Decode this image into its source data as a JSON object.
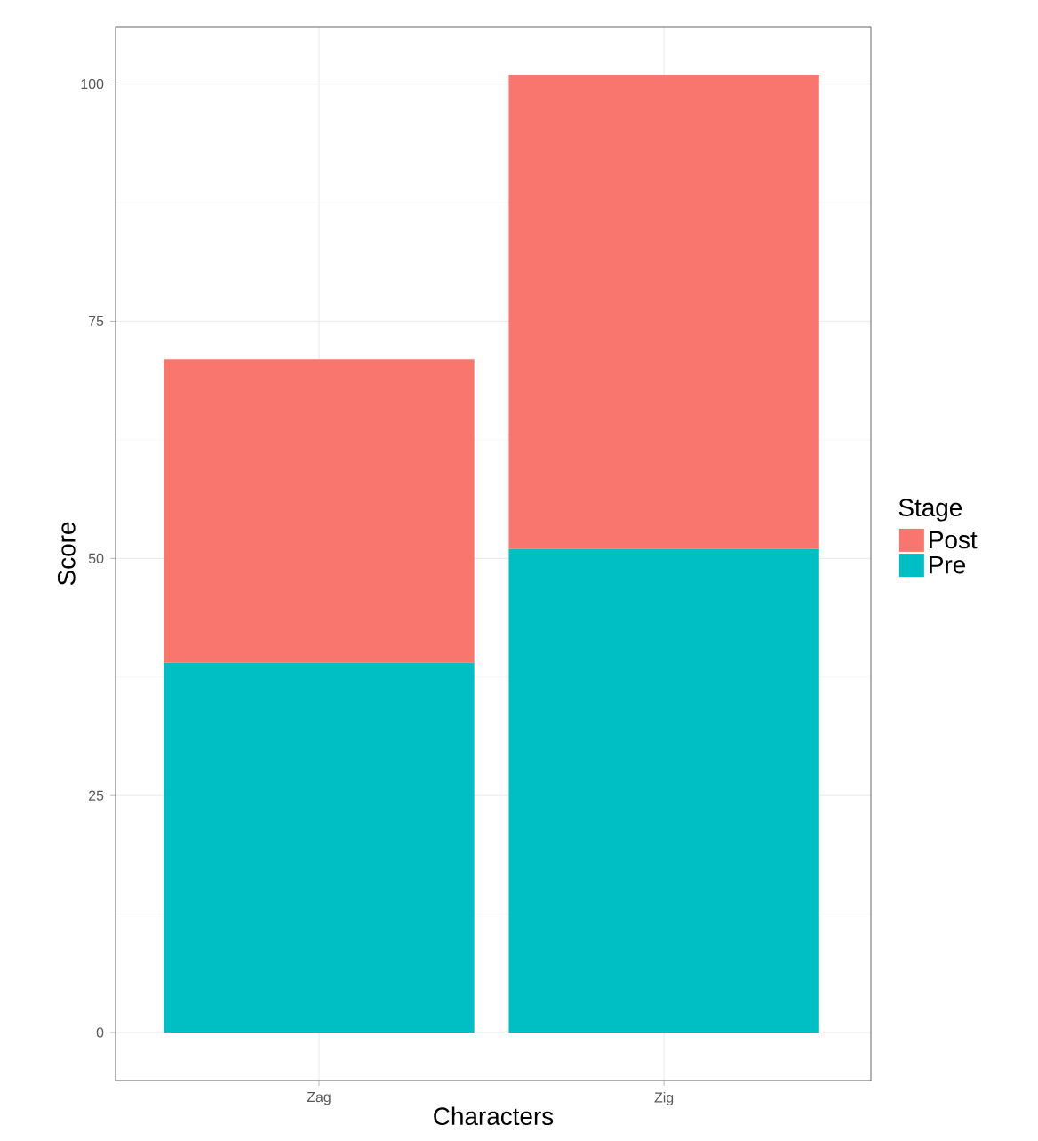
{
  "chart_data": {
    "type": "bar",
    "xlabel": "Characters",
    "ylabel": "Score",
    "legend_title": "Stage",
    "categories": [
      "Zag",
      "Zig"
    ],
    "series": [
      {
        "name": "Pre",
        "color": "#00bfc4",
        "values": [
          39,
          51
        ]
      },
      {
        "name": "Post",
        "color": "#f8766d",
        "values": [
          32,
          50
        ]
      }
    ],
    "stacked": true,
    "ylim": [
      -5.05,
      106.05
    ],
    "yticks": [
      0,
      25,
      50,
      75,
      100
    ],
    "grid": true,
    "legend": "right"
  }
}
